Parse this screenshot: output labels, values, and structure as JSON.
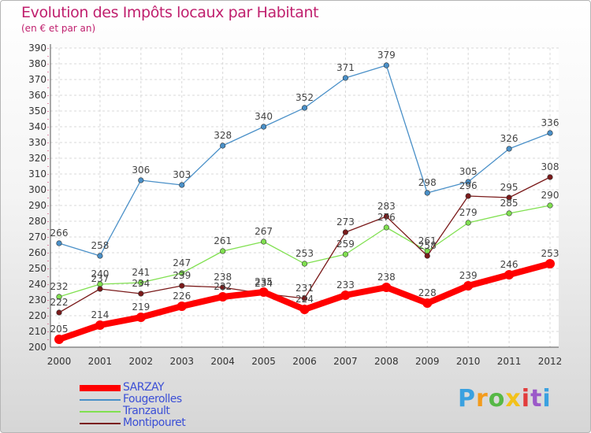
{
  "title": "Evolution des Impôts locaux par Habitant",
  "subtitle": "(en € et par an)",
  "logo": [
    "P",
    "r",
    "o",
    "x",
    "i",
    "t",
    "i"
  ],
  "logo_colors": [
    "#3aa1e0",
    "#f39b1c",
    "#56b846",
    "#f2c21b",
    "#e23c3c",
    "#9b59c9",
    "#3aa1e0"
  ],
  "chart_data": {
    "type": "line",
    "title": "Evolution des Impôts locaux par Habitant",
    "subtitle": "(en € et par an)",
    "x": [
      "2000",
      "2001",
      "2002",
      "2003",
      "2004",
      "2005",
      "2006",
      "2007",
      "2008",
      "2009",
      "2010",
      "2011",
      "2012"
    ],
    "ylim": [
      200,
      390
    ],
    "ystep": 10,
    "grid": true,
    "legend_position": "bottom-left",
    "series": [
      {
        "name": "SARZAY",
        "color": "#ff0000",
        "values": [
          205,
          214,
          219,
          226,
          232,
          235,
          224,
          233,
          238,
          228,
          239,
          246,
          253
        ]
      },
      {
        "name": "Fougerolles",
        "color": "#4a90c8",
        "values": [
          266,
          258,
          306,
          303,
          328,
          340,
          352,
          371,
          379,
          298,
          305,
          326,
          336
        ]
      },
      {
        "name": "Tranzault",
        "color": "#80e050",
        "values": [
          232,
          240,
          241,
          247,
          261,
          267,
          253,
          259,
          276,
          261,
          279,
          285,
          290
        ]
      },
      {
        "name": "Montipouret",
        "color": "#7a1a1a",
        "values": [
          222,
          237,
          234,
          239,
          238,
          234,
          231,
          273,
          283,
          258,
          296,
          295,
          308
        ]
      }
    ]
  }
}
